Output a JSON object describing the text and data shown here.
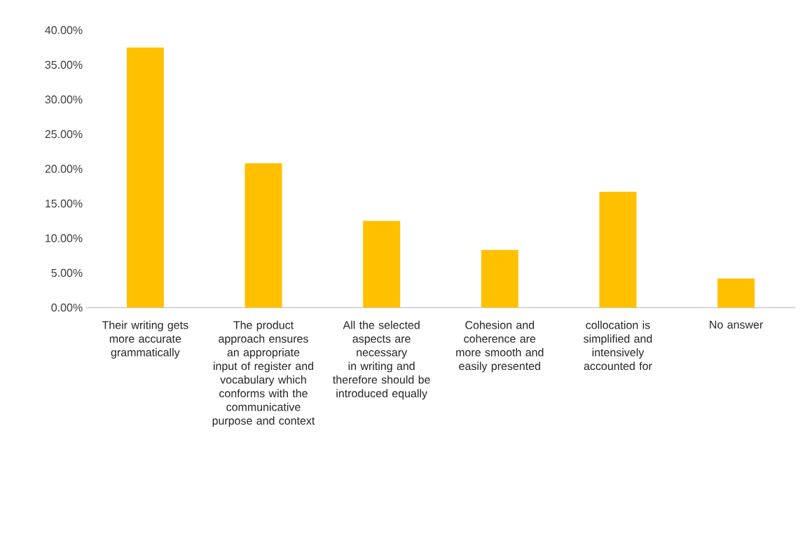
{
  "chart_data": {
    "type": "bar",
    "categories": [
      "Their writing gets more accurate grammatically",
      "The product approach ensures an appropriate input of register and vocabulary which conforms with the communicative purpose and context",
      "All the selected aspects are necessary in writing and therefore should be introduced equally",
      "Cohesion and coherence are more smooth and easily presented",
      "collocation is simplified and intensively accounted for",
      "No answer"
    ],
    "values": [
      37.5,
      20.8,
      12.5,
      8.3,
      16.7,
      4.2
    ],
    "color": "#ffc000",
    "ylim": [
      0,
      40
    ],
    "yticks": [
      {
        "value": 0,
        "label": "0.00%"
      },
      {
        "value": 5,
        "label": "5.00%"
      },
      {
        "value": 10,
        "label": "10.00%"
      },
      {
        "value": 15,
        "label": "15.00%"
      },
      {
        "value": 20,
        "label": "20.00%"
      },
      {
        "value": 25,
        "label": "25.00%"
      },
      {
        "value": 30,
        "label": "30.00%"
      },
      {
        "value": 35,
        "label": "35.00%"
      },
      {
        "value": 40,
        "label": "40.00%"
      }
    ]
  }
}
